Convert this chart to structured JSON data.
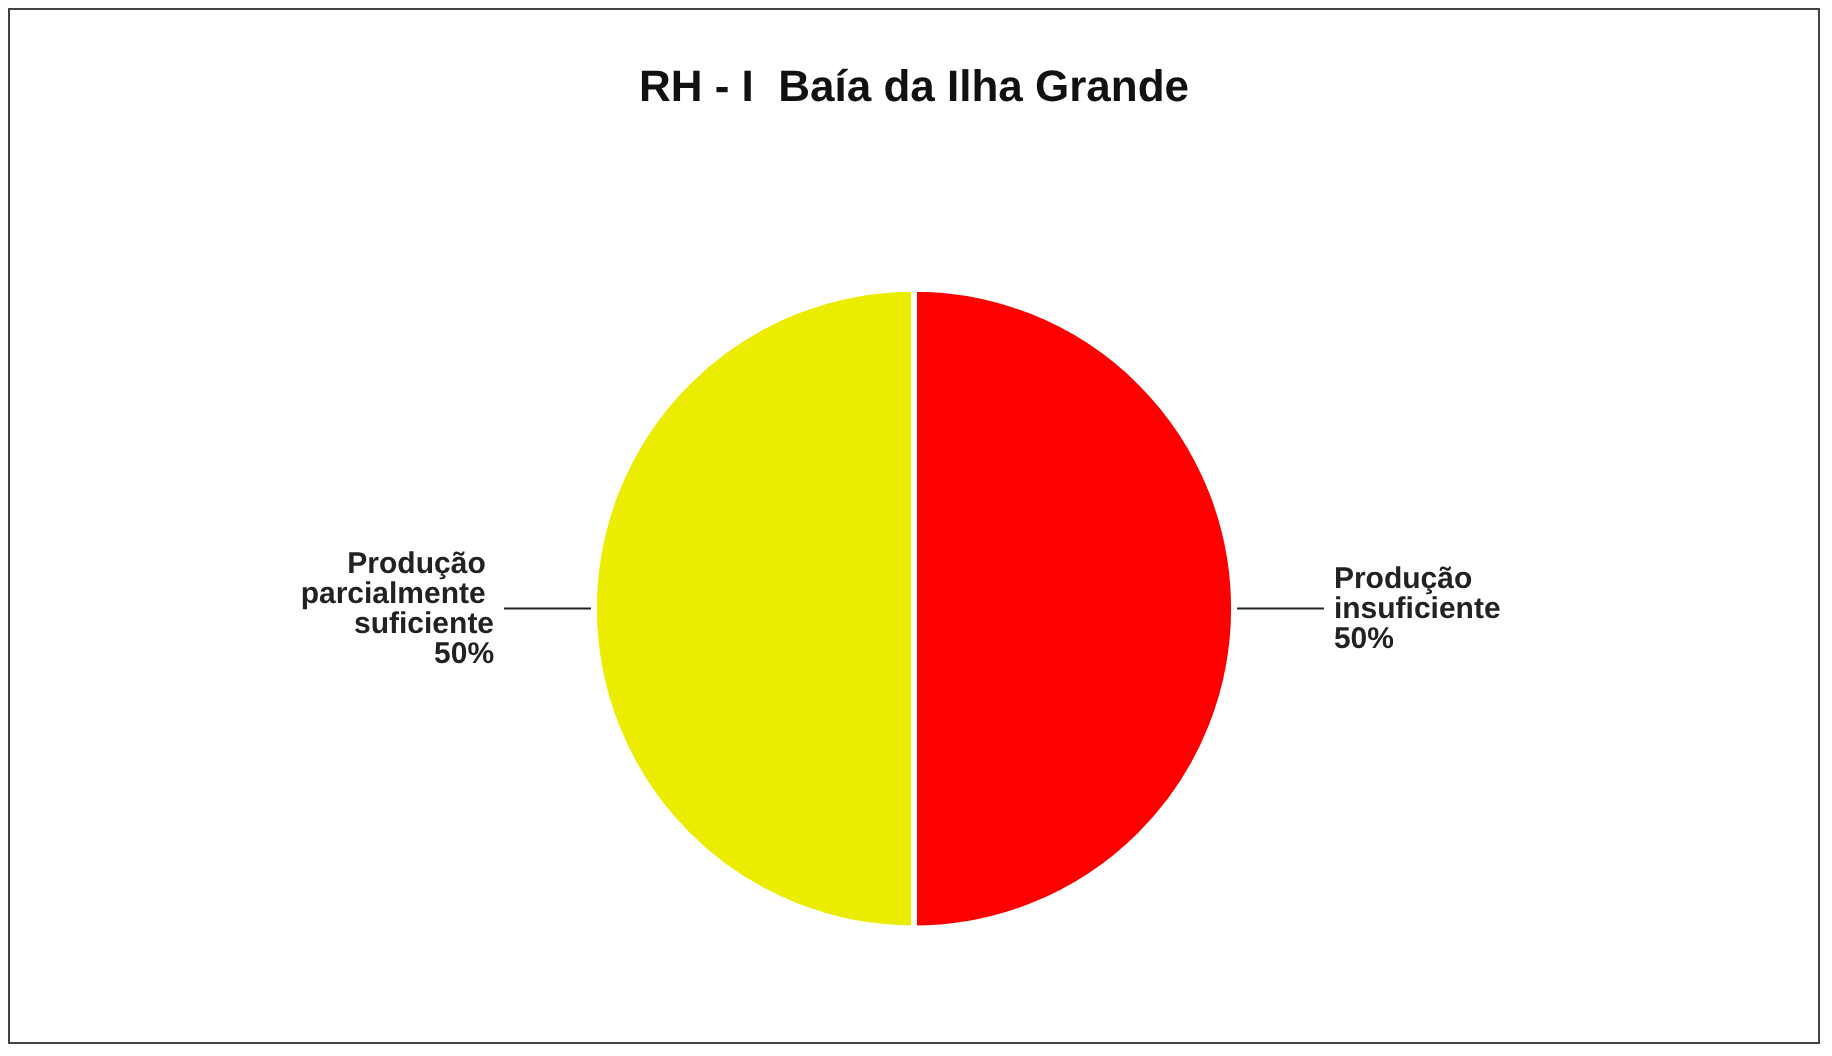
{
  "chart_data": {
    "type": "pie",
    "title": "RH - I  Baía da Ilha Grande",
    "categories": [
      "Produção insuficiente",
      "Produção parcialmente suficiente"
    ],
    "values": [
      50,
      50
    ],
    "colors": [
      "#ff0000",
      "#ecec00"
    ],
    "value_labels": [
      "50%",
      "50%"
    ],
    "legend": false
  }
}
